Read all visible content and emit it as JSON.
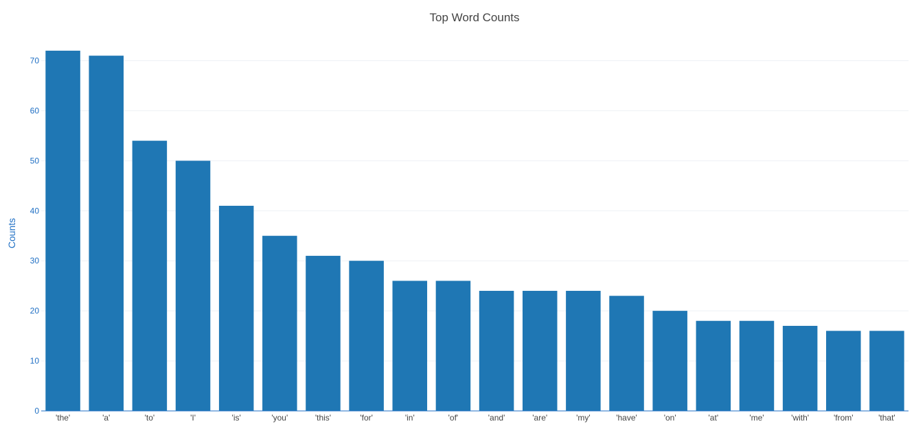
{
  "chart_data": {
    "type": "bar",
    "title": "Top Word Counts",
    "xlabel": "",
    "ylabel": "Counts",
    "categories": [
      "'the'",
      "'a'",
      "'to'",
      "'I'",
      "'is'",
      "'you'",
      "'this'",
      "'for'",
      "'in'",
      "'of'",
      "'and'",
      "'are'",
      "'my'",
      "'have'",
      "'on'",
      "'at'",
      "'me'",
      "'with'",
      "'from'",
      "'that'"
    ],
    "values": [
      72,
      71,
      54,
      50,
      41,
      35,
      31,
      30,
      26,
      26,
      24,
      24,
      24,
      23,
      20,
      18,
      18,
      17,
      16,
      16
    ],
    "ylim": [
      0,
      75
    ],
    "yticks": [
      0,
      10,
      20,
      30,
      40,
      50,
      60,
      70
    ],
    "grid": true,
    "bar_color": "#1f77b4",
    "axis_color": "#1f6fc4"
  }
}
